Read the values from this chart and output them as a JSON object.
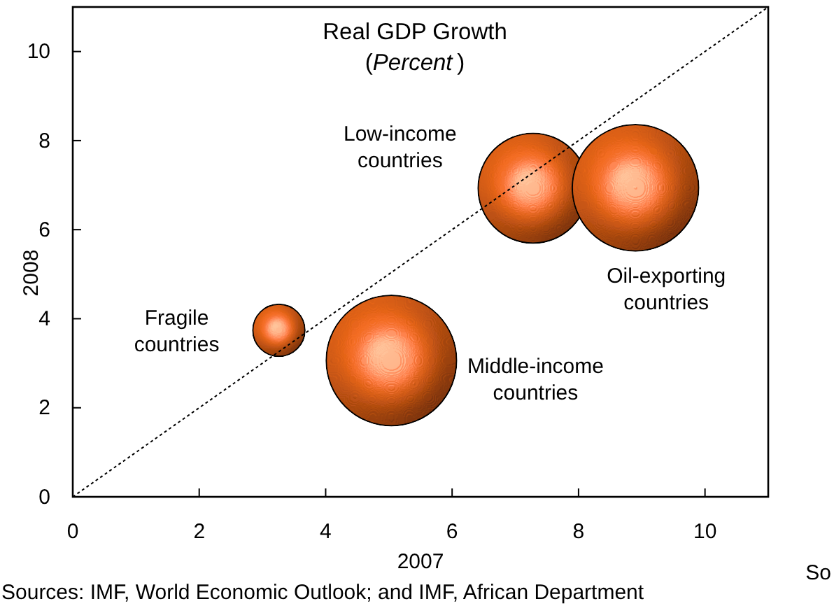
{
  "chart_data": {
    "type": "bubble",
    "title": "Real GDP Growth",
    "subtitle": "(Percent)",
    "xlabel": "2007",
    "ylabel": "2008",
    "xlim": [
      0,
      11
    ],
    "ylim": [
      0,
      11
    ],
    "xticks": [
      0,
      2,
      4,
      6,
      8,
      10
    ],
    "yticks": [
      0,
      2,
      4,
      6,
      8,
      10
    ],
    "series": [
      {
        "name": "Fragile countries",
        "color": "#f26a1b",
        "x": [
          3.26
        ],
        "values": [
          3.74
        ],
        "sizes": [
          0.16
        ]
      },
      {
        "name": "Middle-income countries",
        "color": "#f26a1b",
        "x": [
          5.04
        ],
        "values": [
          3.06
        ],
        "sizes": [
          1
        ]
      },
      {
        "name": "Low-income countries",
        "color": "#f26a1b",
        "x": [
          7.28
        ],
        "values": [
          6.93
        ],
        "sizes": [
          0.71
        ]
      },
      {
        "name": "Oil-exporting countries",
        "color": "#f26a1b",
        "x": [
          8.9
        ],
        "values": [
          6.94
        ],
        "sizes": [
          0.94
        ]
      },
      {
        "type": "line",
        "color": "#000000",
        "line_style": "dotted",
        "x": [
          0,
          11
        ],
        "values": [
          0,
          11
        ]
      }
    ],
    "annotations": [
      "So",
      "Sources: IMF, World Economic Outlook; and IMF, African Department"
    ]
  }
}
